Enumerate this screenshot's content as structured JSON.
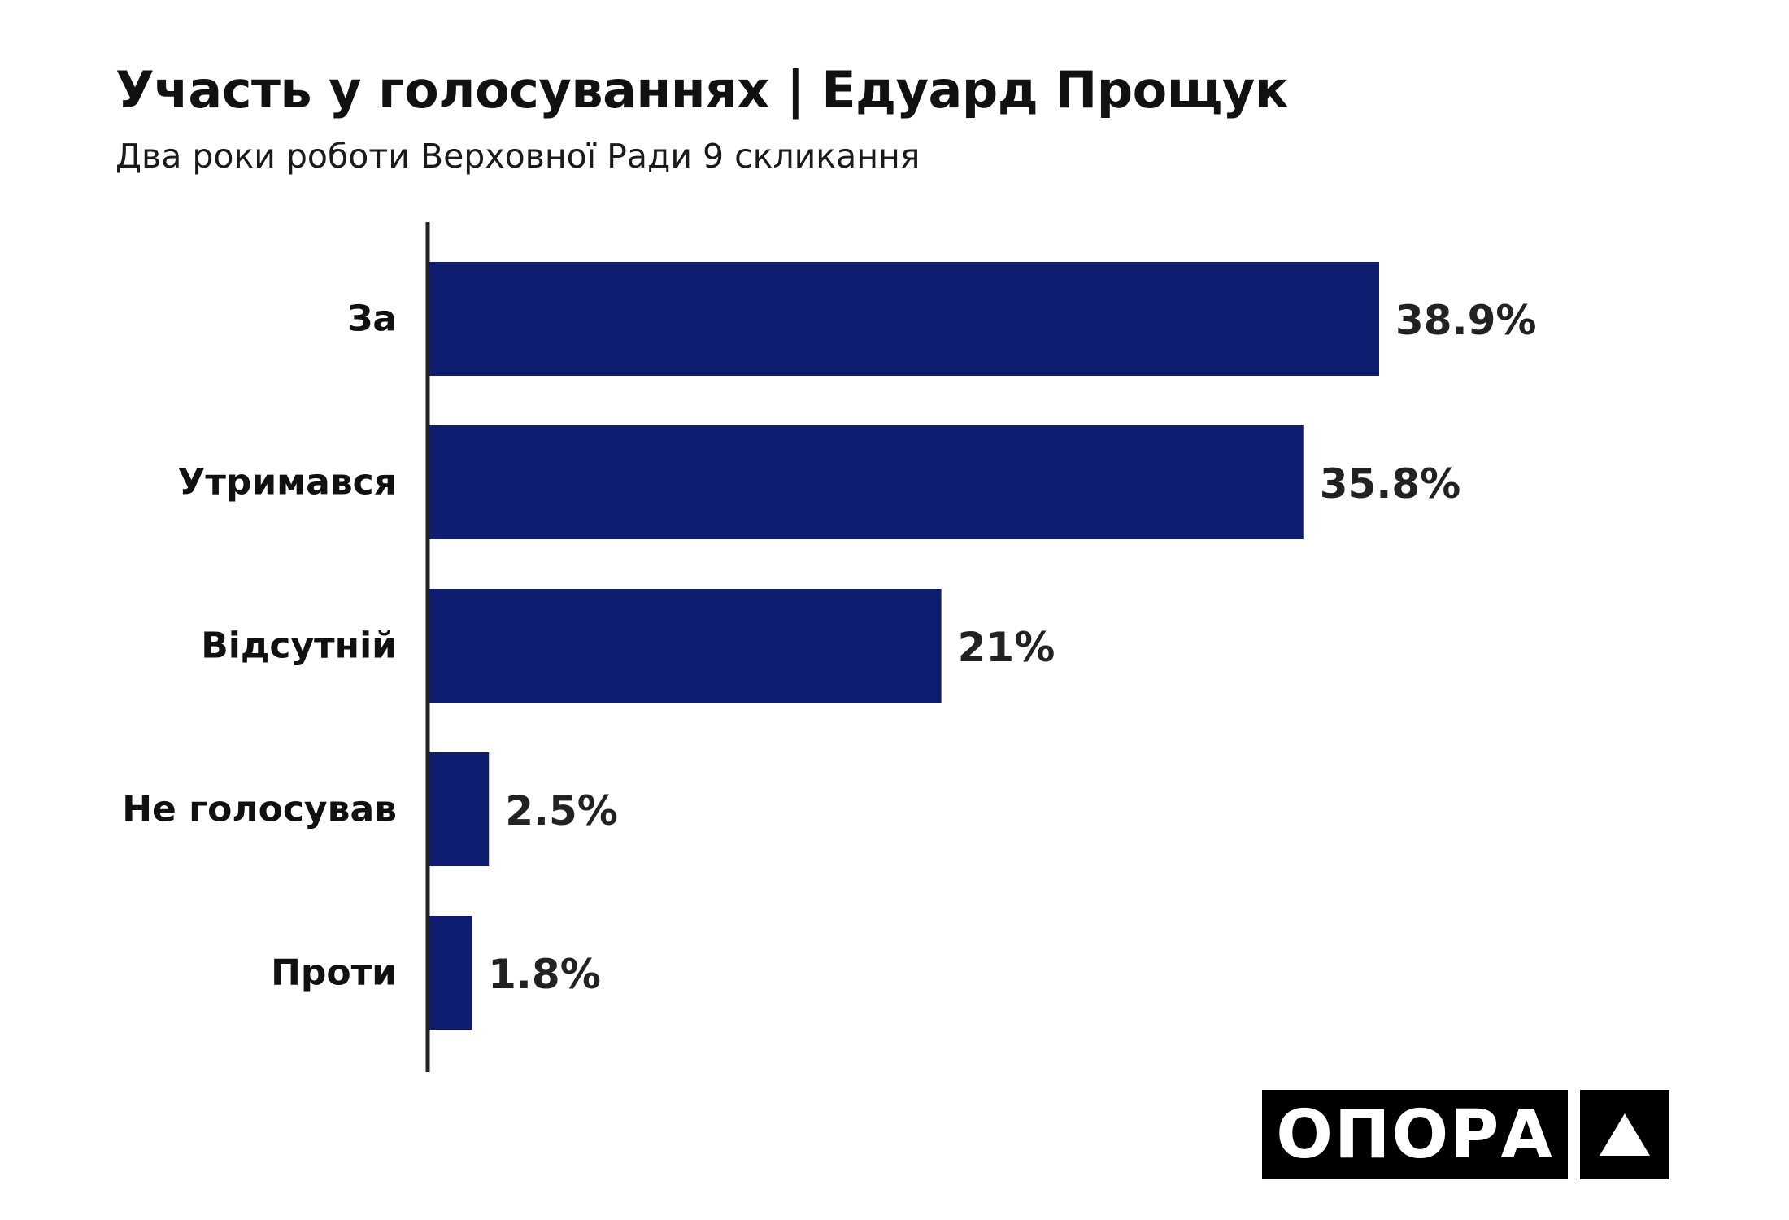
{
  "header": {
    "title": "Участь у голосуваннях | Едуард Прощук",
    "subtitle": "Два роки роботи Верховної Ради 9 скликання"
  },
  "logo": {
    "text": "ОПОРА",
    "mark_icon": "triangle-icon"
  },
  "colors": {
    "bar": "#0e1d6f",
    "axis": "#222222",
    "logo_bg": "#000000"
  },
  "chart_data": {
    "type": "bar",
    "orientation": "horizontal",
    "title": "Участь у голосуваннях | Едуард Прощук",
    "subtitle": "Два роки роботи Верховної Ради 9 скликання",
    "categories": [
      "За",
      "Утримався",
      "Відсутній",
      "Не голосував",
      "Проти"
    ],
    "values": [
      38.9,
      35.8,
      21,
      2.5,
      1.8
    ],
    "value_labels": [
      "38.9%",
      "35.8%",
      "21%",
      "2.5%",
      "1.8%"
    ],
    "unit": "%",
    "xlim": [
      0,
      50
    ],
    "grid": false,
    "legend": "none"
  }
}
